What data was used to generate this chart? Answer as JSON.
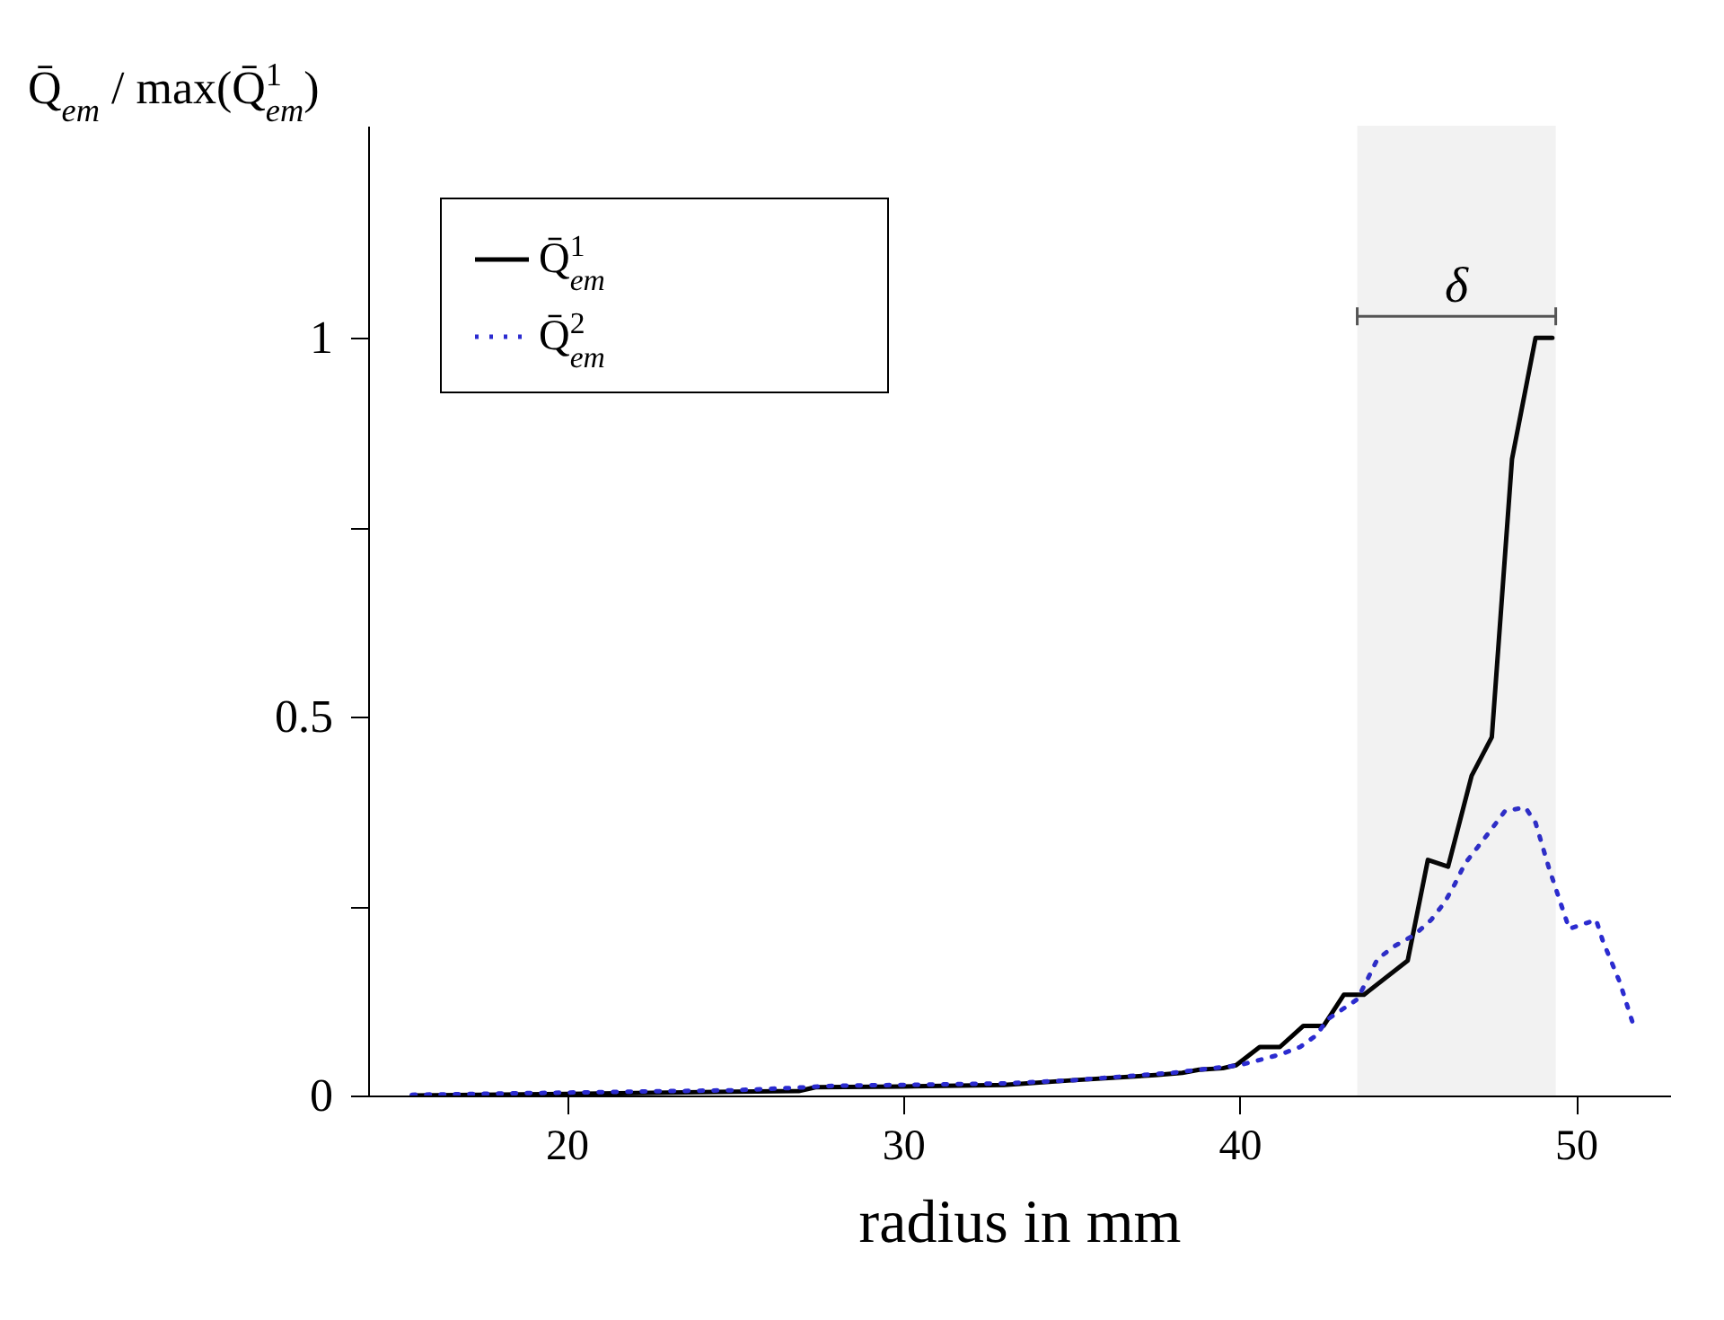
{
  "chart_data": {
    "type": "line",
    "xlabel": "radius in mm",
    "ylabel": "Q̄$_{em}$ / max(Q̄$^{1}$$_{em}$)",
    "xlim": [
      14.1,
      52.8
    ],
    "xticks": [
      20,
      30,
      40,
      50
    ],
    "ylim": [
      0,
      1.28
    ],
    "yticks": [
      0,
      {
        "value": 0.25,
        "label": null
      },
      0.5,
      {
        "value": 0.75,
        "label": null
      },
      1
    ],
    "grid": false,
    "legend": "top left",
    "series": [
      {
        "name": "Q̄$^{1}$$_{em}$",
        "color": "#000000",
        "line_style": "solid",
        "x": [
          15.4,
          20,
          25,
          26.9,
          27.4,
          30,
          33,
          35,
          37.5,
          38.3,
          38.8,
          39.5,
          39.9,
          40.6,
          41.2,
          41.9,
          42.5,
          43.1,
          43.7,
          45.0,
          45.6,
          46.2,
          46.9,
          47.5,
          48.1,
          48.8,
          49.3
        ],
        "values": [
          0,
          0.002,
          0.005,
          0.006,
          0.011,
          0.012,
          0.014,
          0.02,
          0.027,
          0.03,
          0.034,
          0.036,
          0.04,
          0.064,
          0.064,
          0.092,
          0.092,
          0.133,
          0.133,
          0.178,
          0.311,
          0.302,
          0.422,
          0.473,
          0.84,
          1,
          1
        ]
      },
      {
        "name": "Q̄$^{2}$$_{em}$",
        "color": "#2b2bd0",
        "line_style": "dotted",
        "x": [
          15.4,
          25,
          26.7,
          28,
          30,
          33,
          35,
          38,
          40.0,
          40.6,
          41.2,
          41.8,
          42.3,
          42.6,
          43.5,
          43.8,
          44.1,
          44.6,
          45.2,
          45.7,
          46.1,
          46.4,
          46.7,
          47.1,
          47.5,
          47.9,
          48.5,
          48.8,
          49.2,
          49.8,
          50.6,
          50.8,
          51.3,
          51.7
        ],
        "values": [
          0.001,
          0.007,
          0.01,
          0.013,
          0.014,
          0.016,
          0.02,
          0.03,
          0.04,
          0.047,
          0.054,
          0.064,
          0.08,
          0.1,
          0.127,
          0.153,
          0.18,
          0.197,
          0.212,
          0.232,
          0.255,
          0.279,
          0.306,
          0.329,
          0.352,
          0.376,
          0.38,
          0.36,
          0.3,
          0.22,
          0.232,
          0.204,
          0.15,
          0.094
        ]
      }
    ],
    "bands": [
      {
        "axis": "x",
        "from": 43.5,
        "to": 49.4,
        "label": "δ",
        "color": "#555555"
      }
    ]
  }
}
